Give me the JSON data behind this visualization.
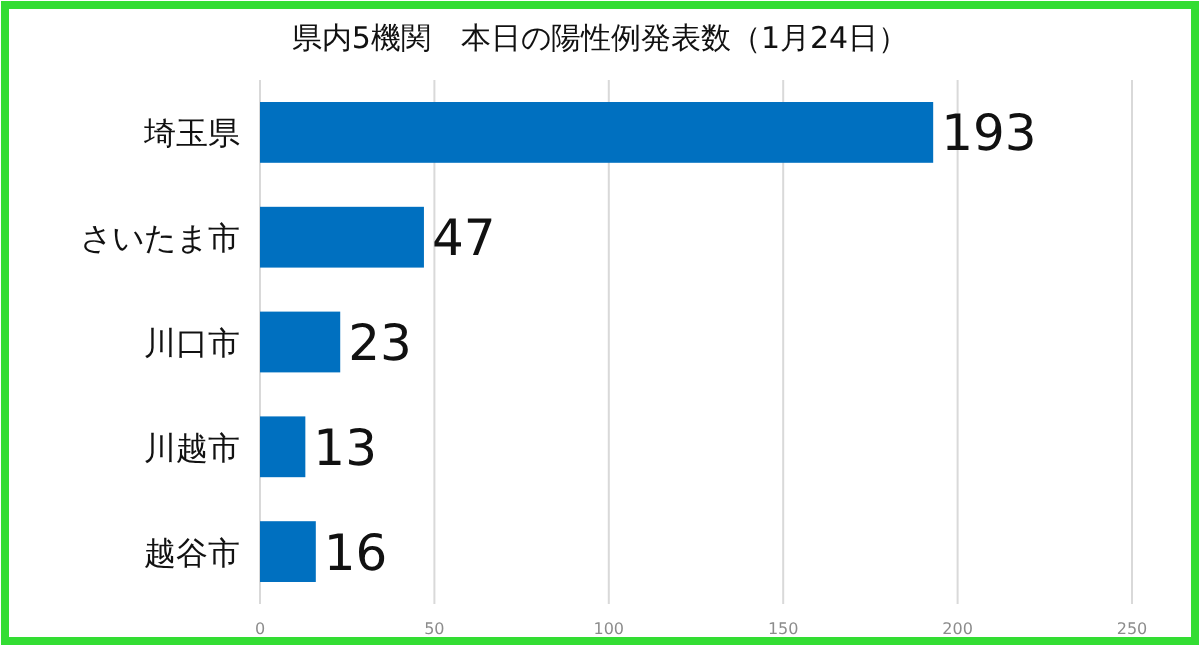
{
  "chart_data": {
    "type": "bar",
    "orientation": "horizontal",
    "title": "県内5機関　本日の陽性例発表数（1月24日）",
    "categories": [
      "埼玉県",
      "さいたま市",
      "川口市",
      "川越市",
      "越谷市"
    ],
    "values": [
      193,
      47,
      23,
      13,
      16
    ],
    "color": "#0070c0",
    "xlim": [
      0,
      250
    ],
    "xticks": [
      0,
      50,
      100,
      150,
      200,
      250
    ],
    "grid": "x",
    "data_labels": true
  }
}
